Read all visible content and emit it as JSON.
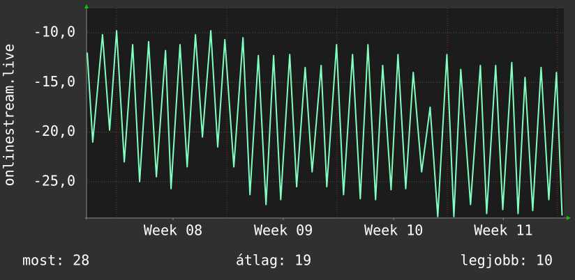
{
  "chart_data": {
    "type": "line",
    "y_label": "onlinestream.live",
    "x": [
      0,
      0.35,
      0.97,
      1.42,
      1.86,
      2.35,
      2.88,
      3.32,
      3.89,
      4.38,
      4.96,
      5.31,
      5.88,
      6.33,
      6.86,
      7.3,
      7.83,
      8.27,
      8.72,
      9.29,
      9.87,
      10.31,
      10.84,
      11.33,
      11.81,
      12.26,
      12.83,
      13.27,
      13.81,
      14.25,
      14.82,
      15.18,
      15.8,
      16.24,
      16.81,
      17.3,
      17.79,
      18.27,
      18.72,
      19.25,
      19.69,
      20.18,
      20.66,
      21.19,
      21.73,
      22.21,
      22.79,
      23.23,
      23.67,
      24.29,
      24.91,
      25.31,
      25.88,
      26.33,
      26.9,
      27.3,
      27.74,
      28.23,
      28.76,
      29.25,
      29.73,
      30.09
    ],
    "series": [
      {
        "name": "onlinestream.live",
        "color": "#80ffc0",
        "values": [
          -12,
          -21,
          -10.2,
          -19.8,
          -9.8,
          -23,
          -11.2,
          -25,
          -10.9,
          -24.5,
          -11.8,
          -25.7,
          -11.2,
          -23.5,
          -10.2,
          -20.5,
          -9.8,
          -21.5,
          -10.7,
          -23.5,
          -10.5,
          -26.3,
          -12.3,
          -27.3,
          -12.3,
          -26.8,
          -12.2,
          -25.5,
          -13.5,
          -24,
          -13.3,
          -25.5,
          -11.2,
          -26.3,
          -12.2,
          -26.7,
          -11.2,
          -26.8,
          -13.3,
          -25.8,
          -12.2,
          -25.7,
          -14,
          -24,
          -17.5,
          -28.5,
          -12.2,
          -28.5,
          -13.7,
          -27.3,
          -13.3,
          -28.2,
          -13.3,
          -27.8,
          -13,
          -28.2,
          -14.5,
          -27.9,
          -13.5,
          -26.8,
          -14,
          -28.4
        ]
      }
    ],
    "xlim": [
      0,
      30.2
    ],
    "xticks": [
      {
        "value": 5.44,
        "label": "Week 08"
      },
      {
        "value": 12.43,
        "label": "Week 09"
      },
      {
        "value": 19.42,
        "label": "Week 10"
      },
      {
        "value": 26.37,
        "label": "Week 11"
      }
    ],
    "ylim": [
      -28.65,
      -7.55
    ],
    "yticks": [
      {
        "value": -25,
        "label": "-25,0"
      },
      {
        "value": -20,
        "label": "-20,0"
      },
      {
        "value": -15,
        "label": "-15,0"
      },
      {
        "value": -10,
        "label": "-10,0"
      }
    ],
    "grid": true,
    "footer": [
      "most: 28",
      "átlag: 19",
      "legjobb: 10"
    ]
  }
}
